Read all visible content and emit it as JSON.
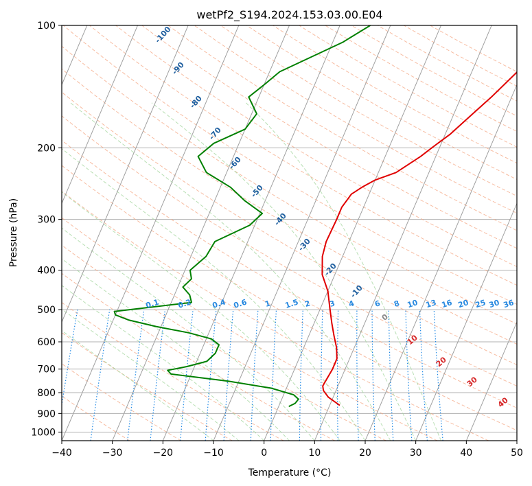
{
  "chart_data": {
    "type": "line",
    "subtype": "skew-t log-p",
    "title": "wetPf2_S194.2024.153.03.00.E04",
    "xlabel": "Temperature (°C)",
    "ylabel": "Pressure (hPa)",
    "xlim": [
      -40,
      50
    ],
    "ylim": [
      1050,
      100
    ],
    "y_scale": "log",
    "grid": true,
    "x_ticks": [
      -40,
      -30,
      -20,
      -10,
      0,
      10,
      20,
      30,
      40,
      50
    ],
    "y_ticks": [
      100,
      200,
      300,
      400,
      500,
      600,
      700,
      800,
      900,
      1000
    ],
    "isotherm_color": "#a0a0a0",
    "dry_adiabat_color": "#f4a582",
    "moist_adiabat_color": "#a6d7a0",
    "mixing_ratio_color": "#1e88e5",
    "series": [
      {
        "color": "#e00000",
        "p": [
          860,
          820,
          790,
          770,
          740,
          700,
          660,
          620,
          580,
          540,
          500,
          450,
          410,
          370,
          340,
          300,
          280,
          260,
          250,
          240,
          230,
          210,
          200,
          185,
          170,
          150,
          130,
          115,
          100
        ],
        "t": [
          12,
          9,
          7.5,
          7,
          7.2,
          7.5,
          7.5,
          6.5,
          5,
          3.5,
          2,
          0,
          -2.5,
          -4,
          -4.5,
          -4.3,
          -4.3,
          -3.5,
          -2,
          0,
          3.5,
          7,
          8.5,
          11,
          13,
          16,
          19,
          21,
          22
        ]
      },
      {
        "color": "#008000",
        "p": [
          865,
          850,
          830,
          810,
          780,
          750,
          720,
          705,
          690,
          670,
          640,
          610,
          590,
          570,
          550,
          530,
          515,
          505,
          480,
          460,
          440,
          420,
          400,
          370,
          340,
          310,
          290,
          270,
          250,
          230,
          210,
          195,
          180,
          165,
          150,
          140,
          130,
          110,
          100
        ],
        "t": [
          2,
          3,
          3.3,
          2,
          -3,
          -12,
          -24,
          -25,
          -21.5,
          -18,
          -17,
          -17,
          -19,
          -24,
          -31,
          -37,
          -40,
          -40.5,
          -26,
          -27,
          -29,
          -28,
          -29,
          -27,
          -26.5,
          -21,
          -19.5,
          -24,
          -28,
          -34,
          -37,
          -35,
          -30,
          -29,
          -32,
          -30,
          -28,
          -18,
          -14
        ]
      }
    ],
    "isotherm_labels": [
      "-100",
      "-90",
      "-80",
      "-70",
      "-60",
      "-50",
      "-40",
      "-30",
      "-20",
      "-10"
    ],
    "dry_adiabat_labels": [
      "0",
      "10",
      "20",
      "30",
      "40"
    ],
    "mixing_ratio_labels": [
      "0.1",
      "0.2",
      "0.4",
      "0.6",
      "1",
      "1.5",
      "2",
      "3",
      "4",
      "6",
      "8",
      "10",
      "13",
      "16",
      "20",
      "25",
      "30",
      "36"
    ]
  }
}
